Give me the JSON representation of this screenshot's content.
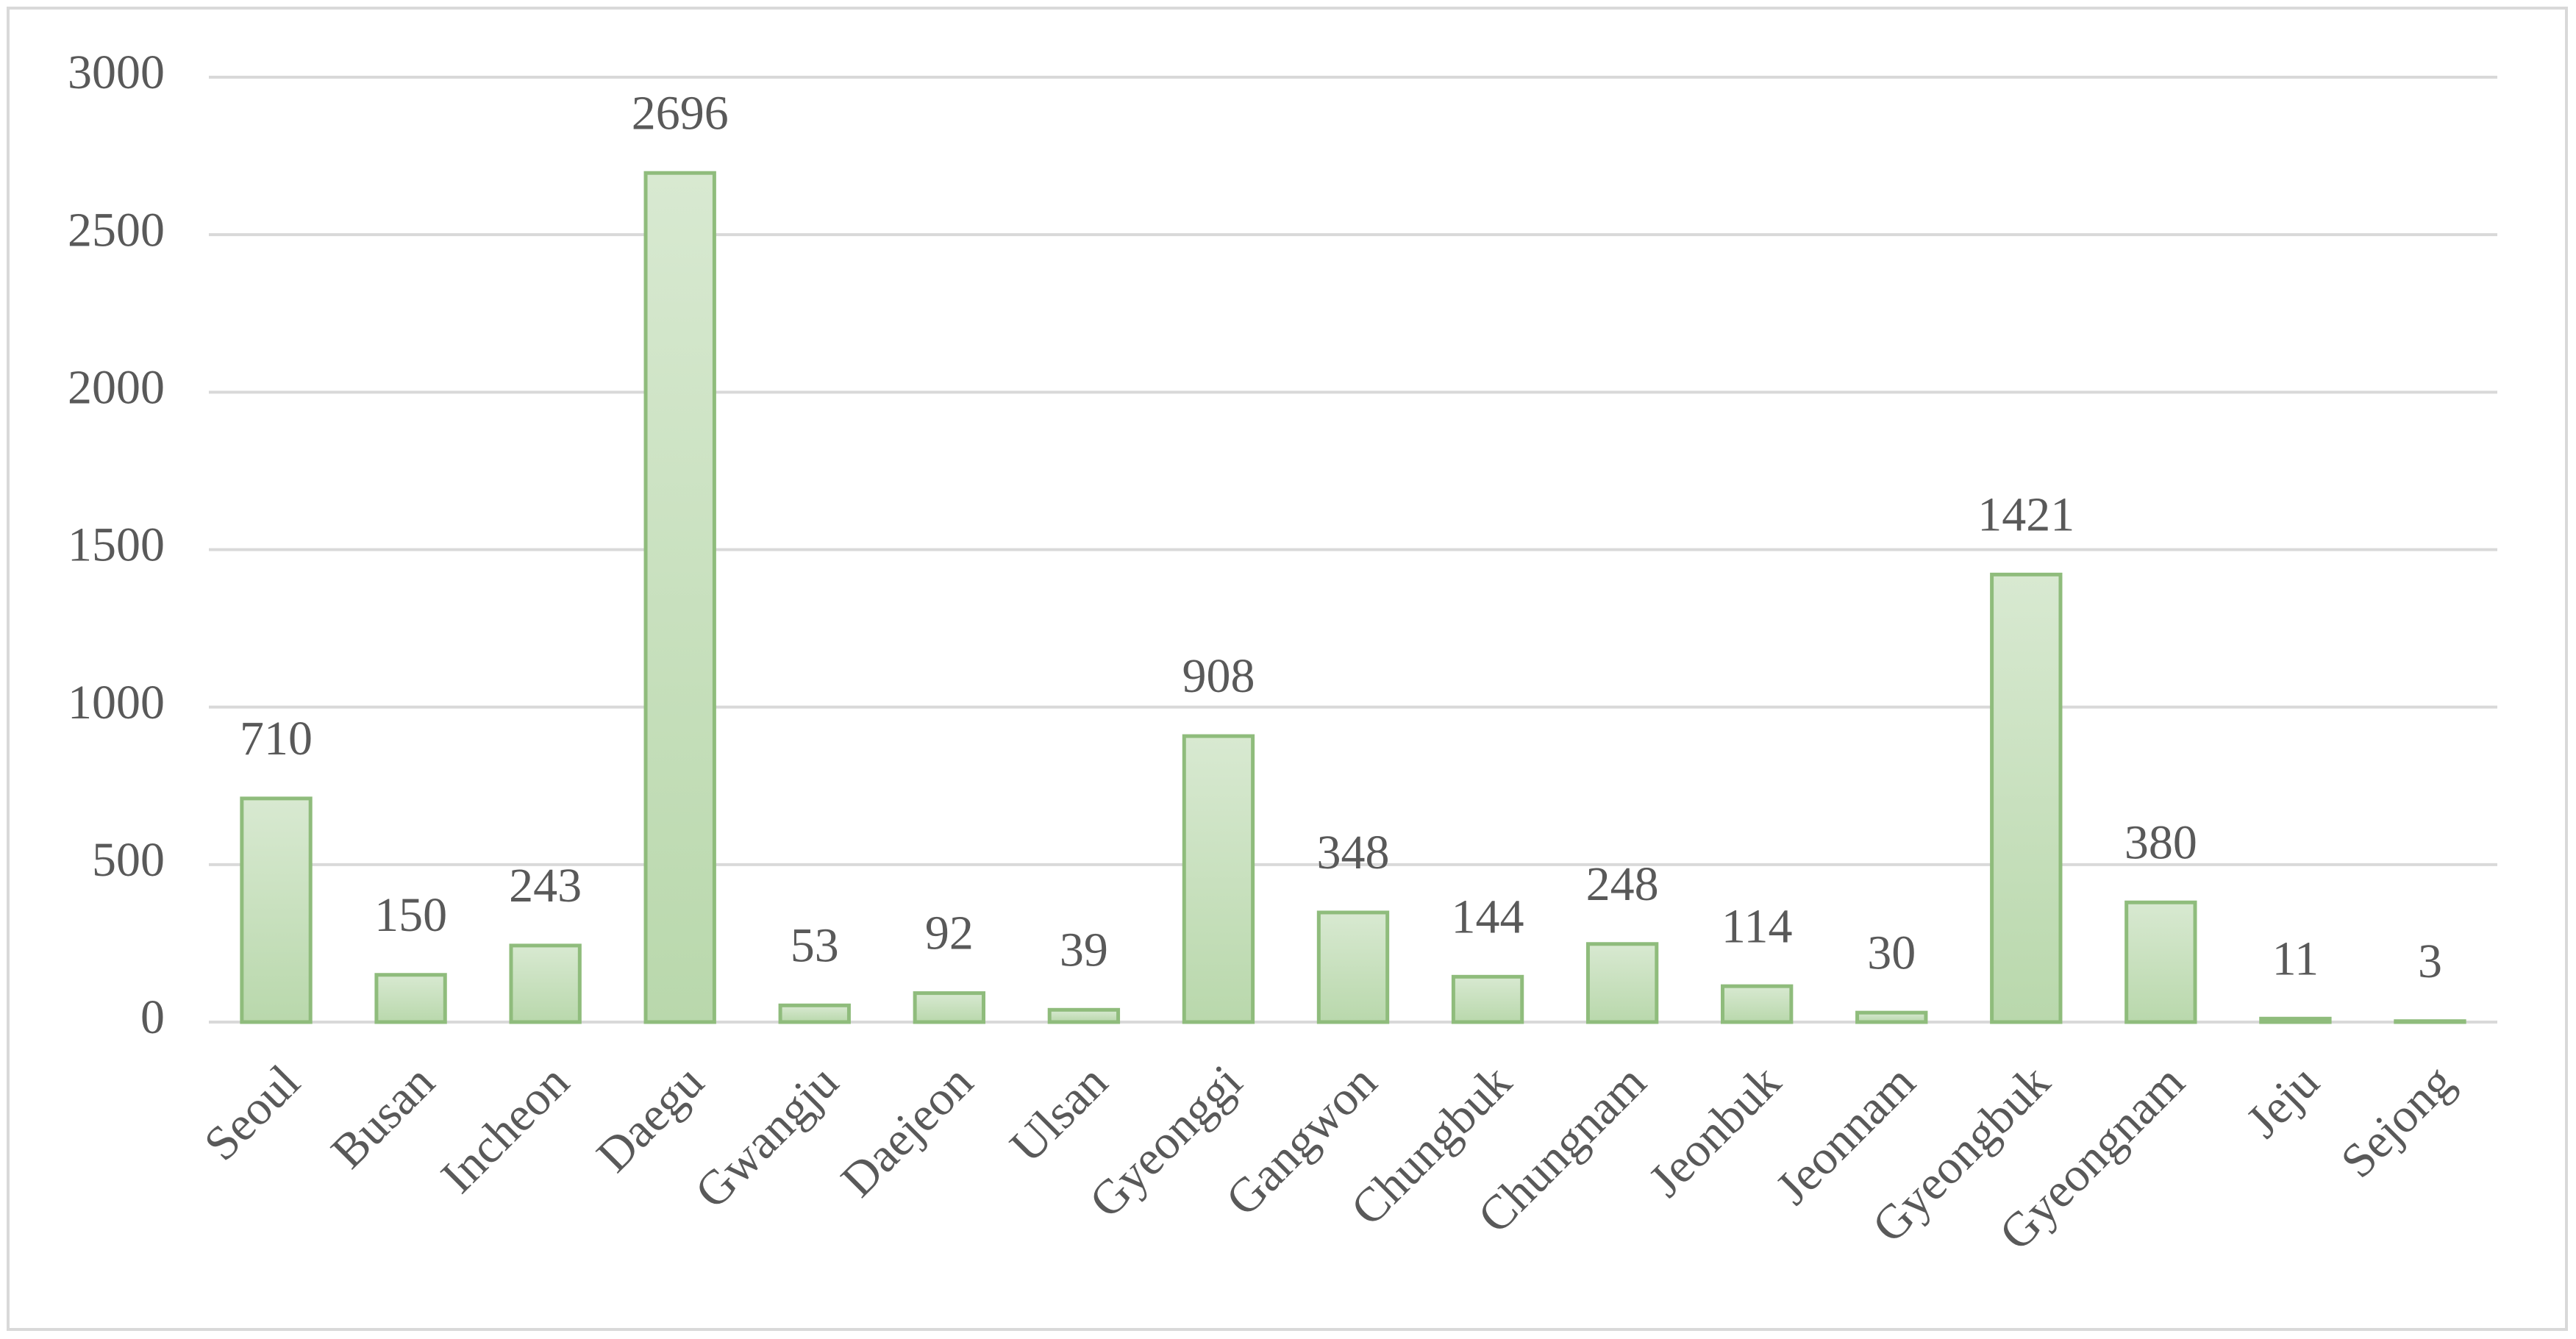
{
  "chart_data": {
    "type": "bar",
    "categories": [
      "Seoul",
      "Busan",
      "Incheon",
      "Daegu",
      "Gwangju",
      "Daejeon",
      "Ulsan",
      "Gyeonggi",
      "Gangwon",
      "Chungbuk",
      "Chungnam",
      "Jeonbuk",
      "Jeonnam",
      "Gyeongbuk",
      "Gyeongnam",
      "Jeju",
      "Sejong"
    ],
    "values": [
      710,
      150,
      243,
      2696,
      53,
      92,
      39,
      908,
      348,
      144,
      248,
      114,
      30,
      1421,
      380,
      11,
      3
    ],
    "color": "#c6dfbb",
    "ylim": [
      0,
      3000
    ],
    "yticks": [
      0,
      500,
      1000,
      1500,
      2000,
      2500,
      3000
    ],
    "grid": true
  }
}
